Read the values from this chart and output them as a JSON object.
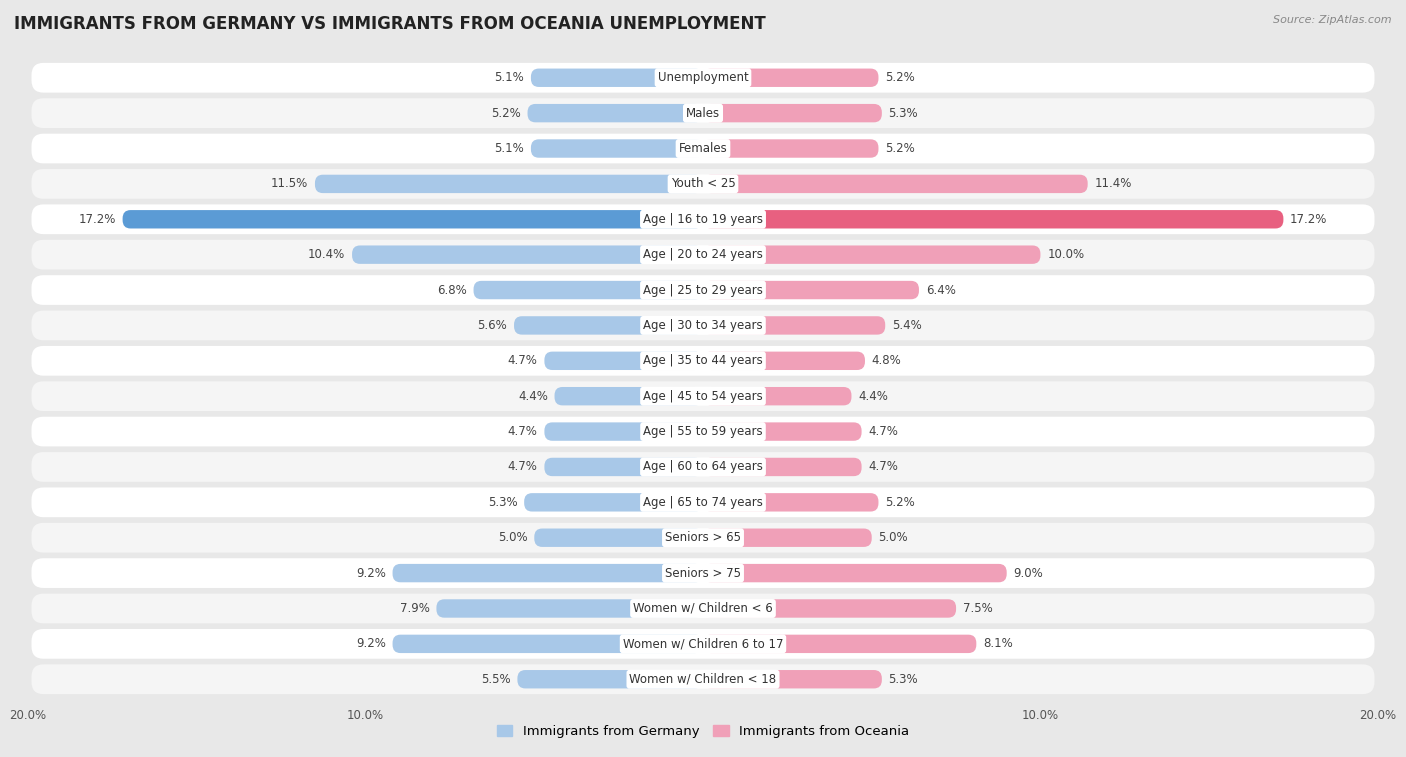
{
  "title": "IMMIGRANTS FROM GERMANY VS IMMIGRANTS FROM OCEANIA UNEMPLOYMENT",
  "source": "Source: ZipAtlas.com",
  "categories": [
    "Unemployment",
    "Males",
    "Females",
    "Youth < 25",
    "Age | 16 to 19 years",
    "Age | 20 to 24 years",
    "Age | 25 to 29 years",
    "Age | 30 to 34 years",
    "Age | 35 to 44 years",
    "Age | 45 to 54 years",
    "Age | 55 to 59 years",
    "Age | 60 to 64 years",
    "Age | 65 to 74 years",
    "Seniors > 65",
    "Seniors > 75",
    "Women w/ Children < 6",
    "Women w/ Children 6 to 17",
    "Women w/ Children < 18"
  ],
  "germany_values": [
    5.1,
    5.2,
    5.1,
    11.5,
    17.2,
    10.4,
    6.8,
    5.6,
    4.7,
    4.4,
    4.7,
    4.7,
    5.3,
    5.0,
    9.2,
    7.9,
    9.2,
    5.5
  ],
  "oceania_values": [
    5.2,
    5.3,
    5.2,
    11.4,
    17.2,
    10.0,
    6.4,
    5.4,
    4.8,
    4.4,
    4.7,
    4.7,
    5.2,
    5.0,
    9.0,
    7.5,
    8.1,
    5.3
  ],
  "germany_color": "#a8c8e8",
  "oceania_color": "#f0a0b8",
  "germany_highlight_color": "#5b9bd5",
  "oceania_highlight_color": "#e86080",
  "background_color": "#e8e8e8",
  "row_color_odd": "#f5f5f5",
  "row_color_even": "#ffffff",
  "xlim": 20.0,
  "bar_height": 0.52,
  "title_fontsize": 12,
  "category_fontsize": 8.5,
  "value_fontsize": 8.5
}
